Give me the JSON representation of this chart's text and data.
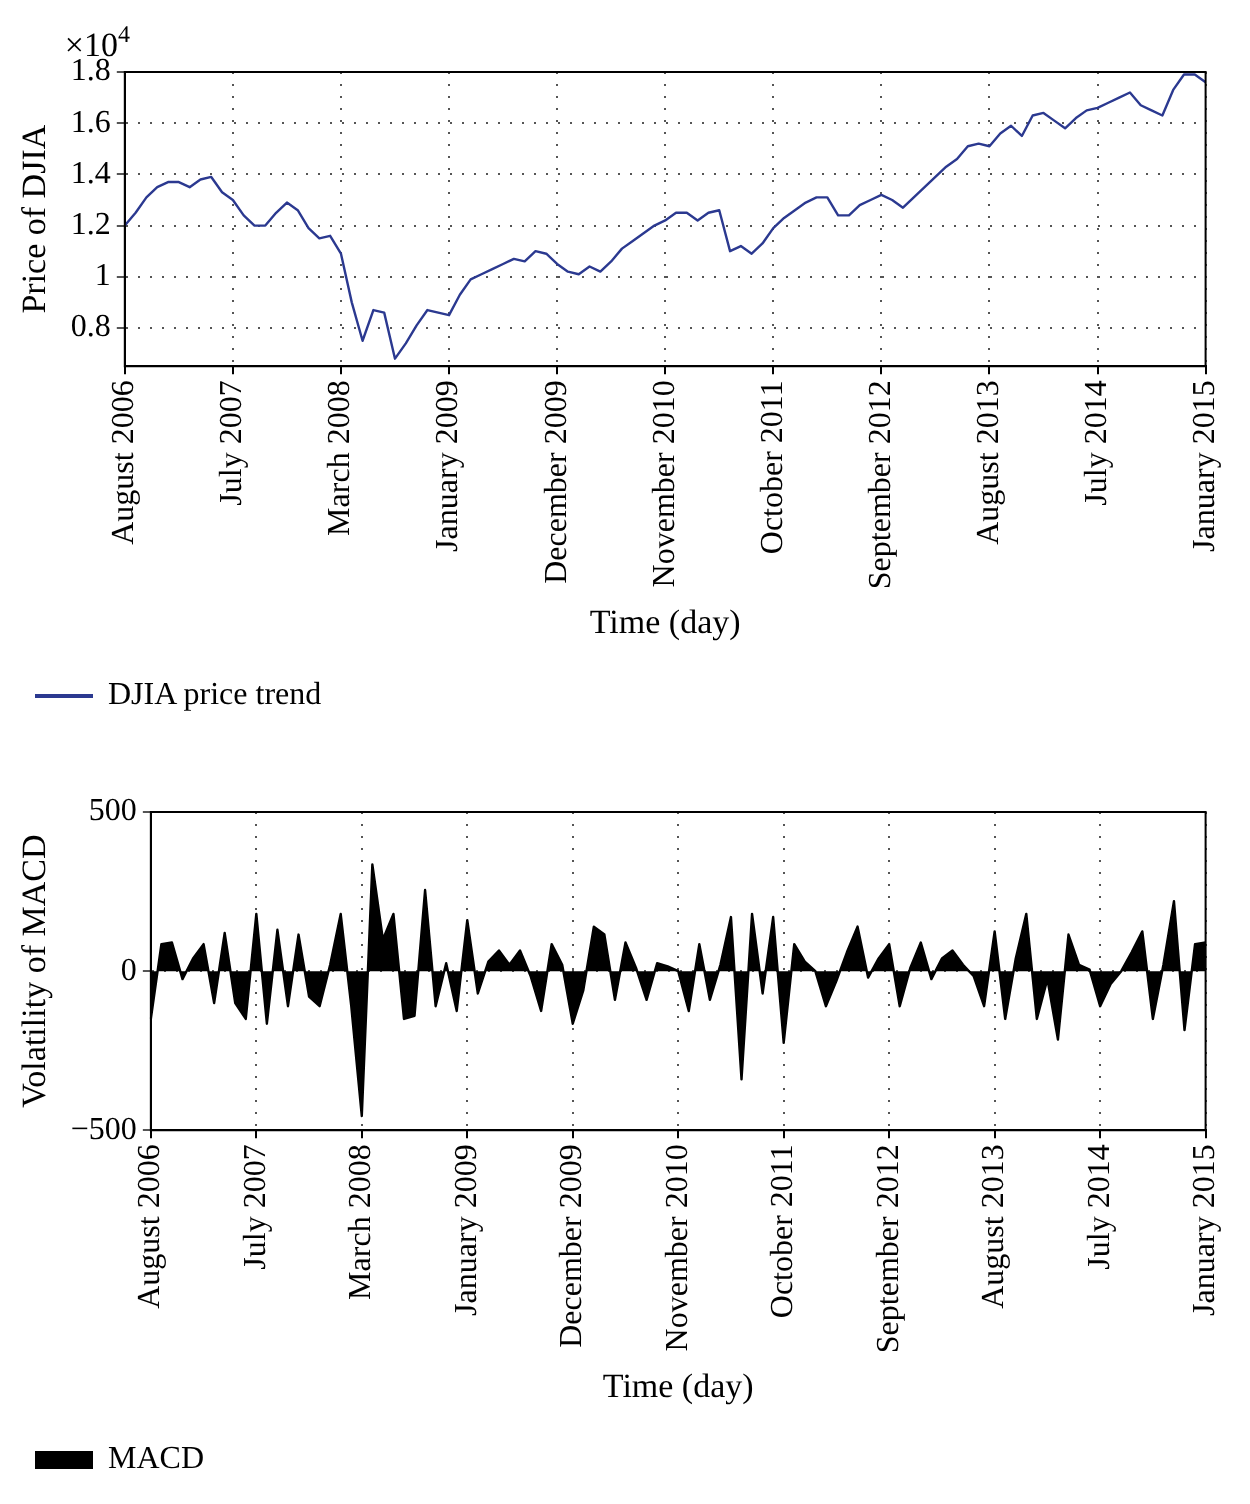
{
  "chart_data": [
    {
      "type": "line",
      "xlabel": "Time (day)",
      "ylabel": "Price of DJIA",
      "annotations": [
        "×10$^{4}$"
      ],
      "categories": [
        "August 2006",
        null,
        null,
        null,
        null,
        null,
        null,
        null,
        null,
        null,
        "July 2007",
        null,
        null,
        null,
        null,
        null,
        null,
        null,
        null,
        null,
        "March 2008",
        null,
        null,
        null,
        null,
        null,
        null,
        null,
        null,
        null,
        "January 2009",
        null,
        null,
        null,
        null,
        null,
        null,
        null,
        null,
        null,
        "December 2009",
        null,
        null,
        null,
        null,
        null,
        null,
        null,
        null,
        null,
        "November 2010",
        null,
        null,
        null,
        null,
        null,
        null,
        null,
        null,
        null,
        "October 2011",
        null,
        null,
        null,
        null,
        null,
        null,
        null,
        null,
        null,
        "September 2012",
        null,
        null,
        null,
        null,
        null,
        null,
        null,
        null,
        null,
        "August 2013",
        null,
        null,
        null,
        null,
        null,
        null,
        null,
        null,
        null,
        "July 2014",
        null,
        null,
        null,
        null,
        null,
        null,
        null,
        null,
        null,
        "January 2015"
      ],
      "ylim": [
        0.65,
        1.8
      ],
      "yticks": [
        0.8,
        1,
        1.2,
        1.4,
        1.6,
        1.8
      ],
      "grid": true,
      "legend": "bottom",
      "marker": "none",
      "line_style": "solid",
      "series": [
        {
          "name": "DJIA price trend",
          "color": "#2b3990",
          "values": [
            1.2,
            1.25,
            1.31,
            1.35,
            1.37,
            1.37,
            1.35,
            1.38,
            1.39,
            1.33,
            1.3,
            1.24,
            1.2,
            1.2,
            1.25,
            1.29,
            1.26,
            1.19,
            1.15,
            1.16,
            1.09,
            0.9,
            0.75,
            0.87,
            0.86,
            0.68,
            0.74,
            0.81,
            0.87,
            0.86,
            0.85,
            0.93,
            0.99,
            1.01,
            1.03,
            1.05,
            1.07,
            1.06,
            1.1,
            1.09,
            1.05,
            1.02,
            1.01,
            1.04,
            1.02,
            1.06,
            1.11,
            1.14,
            1.17,
            1.2,
            1.22,
            1.25,
            1.25,
            1.22,
            1.25,
            1.26,
            1.1,
            1.12,
            1.09,
            1.13,
            1.19,
            1.23,
            1.26,
            1.29,
            1.31,
            1.31,
            1.24,
            1.24,
            1.28,
            1.3,
            1.32,
            1.3,
            1.27,
            1.31,
            1.35,
            1.39,
            1.43,
            1.46,
            1.51,
            1.52,
            1.51,
            1.56,
            1.59,
            1.55,
            1.63,
            1.64,
            1.61,
            1.58,
            1.62,
            1.65,
            1.66,
            1.68,
            1.7,
            1.72,
            1.67,
            1.65,
            1.63,
            1.73,
            1.79,
            1.79,
            1.76
          ]
        }
      ]
    },
    {
      "type": "area",
      "xlabel": "Time (day)",
      "ylabel": "Volatility of MACD",
      "categories": [
        "August 2006",
        null,
        null,
        null,
        null,
        null,
        null,
        null,
        null,
        null,
        "July 2007",
        null,
        null,
        null,
        null,
        null,
        null,
        null,
        null,
        null,
        "March 2008",
        null,
        null,
        null,
        null,
        null,
        null,
        null,
        null,
        null,
        "January 2009",
        null,
        null,
        null,
        null,
        null,
        null,
        null,
        null,
        null,
        "December 2009",
        null,
        null,
        null,
        null,
        null,
        null,
        null,
        null,
        null,
        "November 2010",
        null,
        null,
        null,
        null,
        null,
        null,
        null,
        null,
        null,
        "October 2011",
        null,
        null,
        null,
        null,
        null,
        null,
        null,
        null,
        null,
        "September 2012",
        null,
        null,
        null,
        null,
        null,
        null,
        null,
        null,
        null,
        "August 2013",
        null,
        null,
        null,
        null,
        null,
        null,
        null,
        null,
        null,
        "July 2014",
        null,
        null,
        null,
        null,
        null,
        null,
        null,
        null,
        null,
        "January 2015"
      ],
      "ylim": [
        -500,
        500
      ],
      "yticks": [
        {
          "value": -500,
          "label": "−500"
        },
        0,
        500
      ],
      "grid": true,
      "legend": "bottom",
      "series": [
        {
          "name": "MACD",
          "color": "#000000",
          "values": [
            -150,
            85,
            90,
            -25,
            40,
            85,
            -100,
            120,
            -100,
            -150,
            180,
            -165,
            130,
            -110,
            115,
            -80,
            -110,
            20,
            180,
            -110,
            -455,
            335,
            100,
            180,
            -150,
            -140,
            255,
            -110,
            25,
            -125,
            160,
            -70,
            30,
            65,
            20,
            65,
            -15,
            -125,
            85,
            20,
            -165,
            -60,
            140,
            115,
            -90,
            90,
            10,
            -90,
            25,
            15,
            0,
            -125,
            85,
            -90,
            20,
            170,
            -340,
            180,
            -70,
            170,
            -225,
            85,
            30,
            0,
            -110,
            -30,
            60,
            140,
            -20,
            40,
            85,
            -110,
            10,
            90,
            -25,
            40,
            65,
            20,
            -15,
            -110,
            125,
            -150,
            40,
            180,
            -150,
            -25,
            -215,
            115,
            20,
            5,
            -110,
            -40,
            0,
            60,
            125,
            -150,
            20,
            220,
            -185,
            85,
            90
          ]
        }
      ]
    }
  ]
}
